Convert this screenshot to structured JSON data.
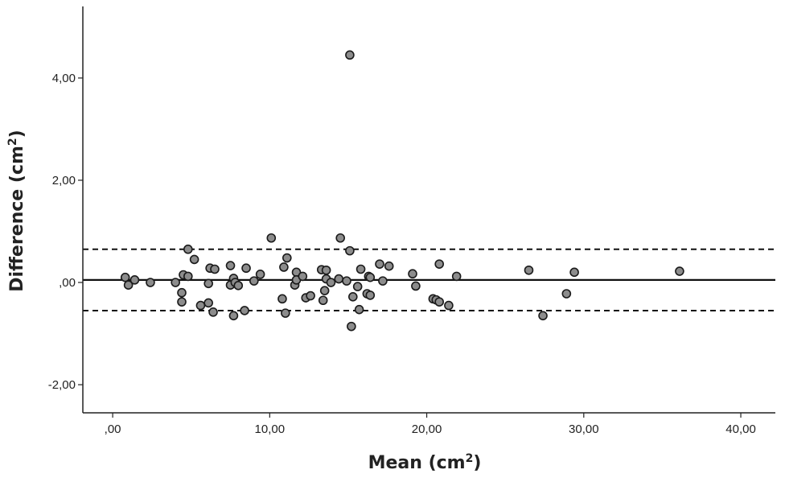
{
  "chart_data": {
    "type": "scatter",
    "title": "",
    "xlabel": {
      "prefix": "Mean (cm",
      "sup": "2",
      "suffix": ")"
    },
    "ylabel": {
      "prefix": "Difference (cm",
      "sup": "2",
      "suffix": ")"
    },
    "xlim": [
      -1.9,
      42.2
    ],
    "ylim": [
      -2.55,
      5.4
    ],
    "xticks": [
      {
        "value": 0,
        "label": ",00"
      },
      {
        "value": 10,
        "label": "10,00"
      },
      {
        "value": 20,
        "label": "20,00"
      },
      {
        "value": 30,
        "label": "30,00"
      },
      {
        "value": 40,
        "label": "40,00"
      }
    ],
    "yticks": [
      {
        "value": -2,
        "label": "-2,00"
      },
      {
        "value": 0,
        "label": ",00"
      },
      {
        "value": 2,
        "label": "2,00"
      },
      {
        "value": 4,
        "label": "4,00"
      }
    ],
    "reference_lines": {
      "mean_difference": 0.05,
      "upper_limit": 0.65,
      "lower_limit": -0.55
    },
    "points": [
      {
        "x": 0.8,
        "y": 0.1
      },
      {
        "x": 1.0,
        "y": -0.05
      },
      {
        "x": 1.4,
        "y": 0.05
      },
      {
        "x": 2.4,
        "y": 0.0
      },
      {
        "x": 4.0,
        "y": 0.0
      },
      {
        "x": 4.4,
        "y": -0.2
      },
      {
        "x": 4.4,
        "y": -0.38
      },
      {
        "x": 4.5,
        "y": 0.15
      },
      {
        "x": 4.8,
        "y": 0.12
      },
      {
        "x": 4.8,
        "y": 0.65
      },
      {
        "x": 5.2,
        "y": 0.45
      },
      {
        "x": 5.6,
        "y": -0.45
      },
      {
        "x": 6.1,
        "y": -0.02
      },
      {
        "x": 6.1,
        "y": -0.4
      },
      {
        "x": 6.2,
        "y": 0.28
      },
      {
        "x": 6.4,
        "y": -0.58
      },
      {
        "x": 6.5,
        "y": 0.26
      },
      {
        "x": 7.5,
        "y": -0.05
      },
      {
        "x": 7.5,
        "y": 0.33
      },
      {
        "x": 7.7,
        "y": 0.08
      },
      {
        "x": 7.7,
        "y": -0.65
      },
      {
        "x": 7.8,
        "y": 0.0
      },
      {
        "x": 8.0,
        "y": -0.06
      },
      {
        "x": 8.4,
        "y": -0.55
      },
      {
        "x": 8.5,
        "y": 0.28
      },
      {
        "x": 9.0,
        "y": 0.03
      },
      {
        "x": 9.4,
        "y": 0.16
      },
      {
        "x": 10.1,
        "y": 0.87
      },
      {
        "x": 10.8,
        "y": -0.32
      },
      {
        "x": 10.9,
        "y": 0.3
      },
      {
        "x": 11.0,
        "y": -0.6
      },
      {
        "x": 11.1,
        "y": 0.48
      },
      {
        "x": 11.6,
        "y": -0.05
      },
      {
        "x": 11.7,
        "y": 0.2
      },
      {
        "x": 11.7,
        "y": 0.05
      },
      {
        "x": 12.1,
        "y": 0.12
      },
      {
        "x": 12.3,
        "y": -0.3
      },
      {
        "x": 12.6,
        "y": -0.26
      },
      {
        "x": 13.3,
        "y": 0.25
      },
      {
        "x": 13.4,
        "y": -0.35
      },
      {
        "x": 13.5,
        "y": -0.16
      },
      {
        "x": 13.6,
        "y": 0.24
      },
      {
        "x": 13.6,
        "y": 0.07
      },
      {
        "x": 13.9,
        "y": 0.0
      },
      {
        "x": 14.4,
        "y": 0.07
      },
      {
        "x": 14.5,
        "y": 0.87
      },
      {
        "x": 14.9,
        "y": 0.03
      },
      {
        "x": 15.1,
        "y": 0.62
      },
      {
        "x": 15.1,
        "y": 4.45
      },
      {
        "x": 15.2,
        "y": -0.86
      },
      {
        "x": 15.3,
        "y": -0.28
      },
      {
        "x": 15.6,
        "y": -0.08
      },
      {
        "x": 15.7,
        "y": -0.53
      },
      {
        "x": 15.8,
        "y": 0.26
      },
      {
        "x": 16.2,
        "y": -0.22
      },
      {
        "x": 16.3,
        "y": 0.12
      },
      {
        "x": 16.4,
        "y": 0.1
      },
      {
        "x": 16.4,
        "y": -0.25
      },
      {
        "x": 17.0,
        "y": 0.36
      },
      {
        "x": 17.2,
        "y": 0.03
      },
      {
        "x": 17.6,
        "y": 0.32
      },
      {
        "x": 19.1,
        "y": 0.17
      },
      {
        "x": 19.3,
        "y": -0.07
      },
      {
        "x": 20.4,
        "y": -0.32
      },
      {
        "x": 20.6,
        "y": -0.34
      },
      {
        "x": 20.8,
        "y": -0.38
      },
      {
        "x": 20.8,
        "y": 0.36
      },
      {
        "x": 21.4,
        "y": -0.45
      },
      {
        "x": 21.9,
        "y": 0.12
      },
      {
        "x": 26.5,
        "y": 0.24
      },
      {
        "x": 27.4,
        "y": -0.65
      },
      {
        "x": 28.9,
        "y": -0.22
      },
      {
        "x": 29.4,
        "y": 0.2
      },
      {
        "x": 36.1,
        "y": 0.22
      }
    ]
  }
}
